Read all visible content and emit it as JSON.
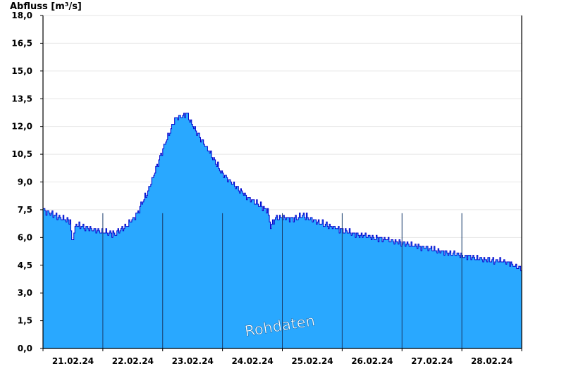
{
  "chart_data": {
    "type": "area",
    "ylabel": "Abfluss [m³/s]",
    "watermark": "Rohdaten",
    "ylim": [
      0,
      18
    ],
    "yticks": [
      "0,0",
      "1,5",
      "3,0",
      "4,5",
      "6,0",
      "7,5",
      "9,0",
      "10,5",
      "12,0",
      "13,5",
      "15,0",
      "16,5",
      "18,0"
    ],
    "xticks": [
      "21.02.24",
      "22.02.24",
      "23.02.24",
      "24.02.24",
      "25.02.24",
      "26.02.24",
      "27.02.24",
      "28.02.24"
    ],
    "grid": true,
    "colors": {
      "fill": "#29a8ff",
      "line": "#0000cc",
      "grid": "#e6e6e6",
      "daylines": "#1a3f6e"
    },
    "series": [
      {
        "x_days": [
          0.0,
          0.25,
          0.45,
          0.48,
          0.55,
          0.75,
          1.0,
          1.2,
          1.35,
          1.55,
          1.75,
          2.0,
          2.2,
          2.4,
          2.5,
          2.8,
          3.0,
          3.2,
          3.4,
          3.6,
          3.75,
          3.8,
          3.9,
          4.2,
          4.35,
          4.6,
          4.9,
          5.2,
          5.5,
          5.75,
          6.0,
          6.3,
          6.6,
          6.9,
          7.2,
          7.4,
          7.7,
          8.0
        ],
        "values": [
          7.5,
          7.1,
          6.9,
          5.8,
          6.7,
          6.5,
          6.3,
          6.2,
          6.5,
          7.2,
          8.5,
          10.8,
          12.4,
          12.7,
          12.0,
          10.5,
          9.4,
          8.8,
          8.2,
          7.8,
          7.4,
          6.6,
          7.1,
          7.0,
          7.2,
          6.8,
          6.5,
          6.2,
          6.0,
          5.9,
          5.7,
          5.5,
          5.3,
          5.1,
          4.9,
          4.8,
          4.7,
          4.3
        ]
      }
    ]
  }
}
